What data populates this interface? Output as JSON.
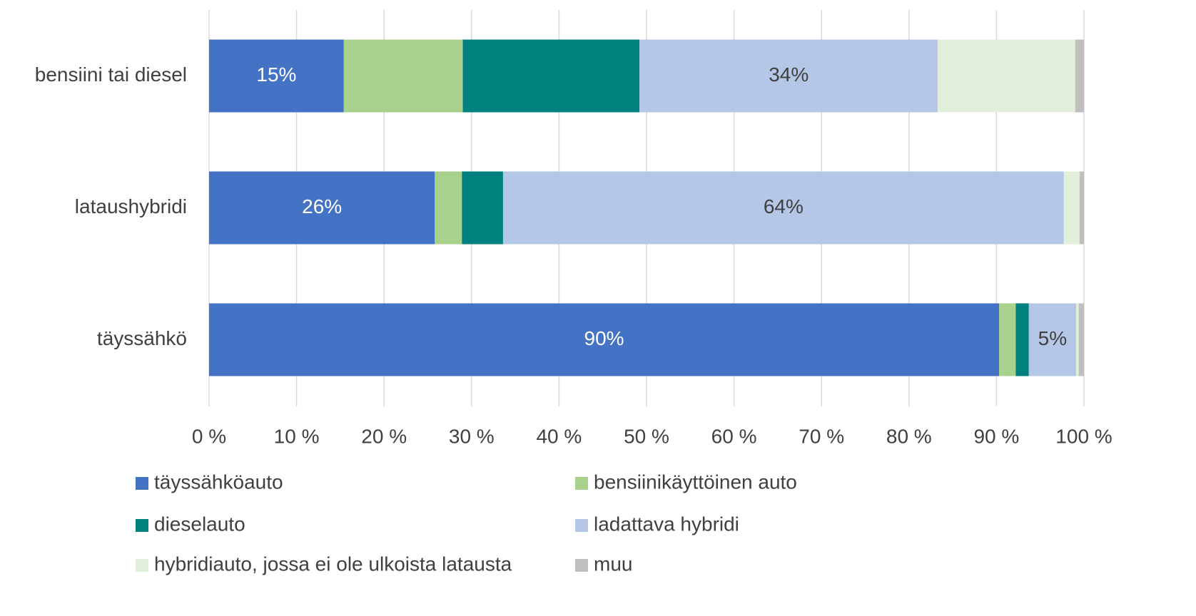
{
  "chart_data": {
    "type": "stacked_bar_horizontal",
    "categories": [
      "bensiini tai diesel",
      "lataushybridi",
      "täyssähkö"
    ],
    "series": [
      {
        "name": "täyssähköauto",
        "color": "#4472c4",
        "values": [
          15.4,
          25.8,
          90.3
        ],
        "value_labels": [
          "15%",
          "26%",
          "90%"
        ]
      },
      {
        "name": "bensiinikäyttöinen auto",
        "color": "#a9d18e",
        "values": [
          13.6,
          3.1,
          1.9
        ]
      },
      {
        "name": "dieselauto",
        "color": "#00807f",
        "values": [
          20.2,
          4.7,
          1.5
        ]
      },
      {
        "name": "ladattava hybridi",
        "color": "#b4c7e7",
        "values": [
          34.1,
          64.1,
          5.4
        ],
        "value_labels": [
          "34%",
          "64%",
          "5%"
        ]
      },
      {
        "name": "hybridiauto, jossa ei ole ulkoista latausta",
        "color": "#e2efda",
        "values": [
          15.7,
          1.8,
          0.3
        ]
      },
      {
        "name": "muu",
        "color": "#bfbfbf",
        "values": [
          1.0,
          0.5,
          0.6
        ]
      }
    ],
    "xlim": [
      0,
      100
    ],
    "xticks": [
      {
        "value": 0,
        "label": "0 %"
      },
      {
        "value": 10,
        "label": "10 %"
      },
      {
        "value": 20,
        "label": "20 %"
      },
      {
        "value": 30,
        "label": "30 %"
      },
      {
        "value": 40,
        "label": "40 %"
      },
      {
        "value": 50,
        "label": "50 %"
      },
      {
        "value": 60,
        "label": "60 %"
      },
      {
        "value": 70,
        "label": "70 %"
      },
      {
        "value": 80,
        "label": "80 %"
      },
      {
        "value": 90,
        "label": "90 %"
      },
      {
        "value": 100,
        "label": "100 %"
      }
    ],
    "grid": true,
    "legend": "bottom"
  }
}
